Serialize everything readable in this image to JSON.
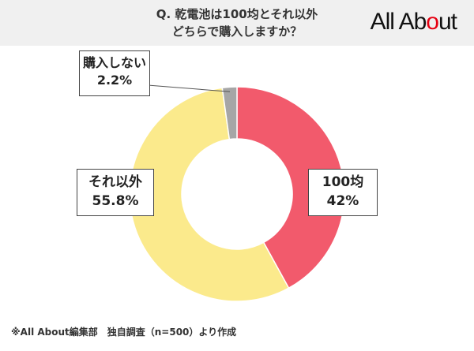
{
  "header": {
    "question_line1": "Q. 乾電池は100均とそれ以外",
    "question_line2": "どちらで購入しますか？",
    "logo_text_a": "All Ab",
    "logo_text_dot": "o",
    "logo_text_b": "ut"
  },
  "chart_data": {
    "type": "pie",
    "title": "Q. 乾電池は100均とそれ以外 どちらで購入しますか？",
    "donut": true,
    "slices": [
      {
        "name": "100均",
        "value": 42,
        "value_label": "42%",
        "color": "#f25a6c"
      },
      {
        "name": "それ以外",
        "value": 55.8,
        "value_label": "55.8%",
        "color": "#fbea8c"
      },
      {
        "name": "購入しない",
        "value": 2.2,
        "value_label": "2.2%",
        "color": "#a6a6a6"
      }
    ]
  },
  "footer": {
    "source": "※All About編集部　独自調査（n=500）より作成"
  }
}
